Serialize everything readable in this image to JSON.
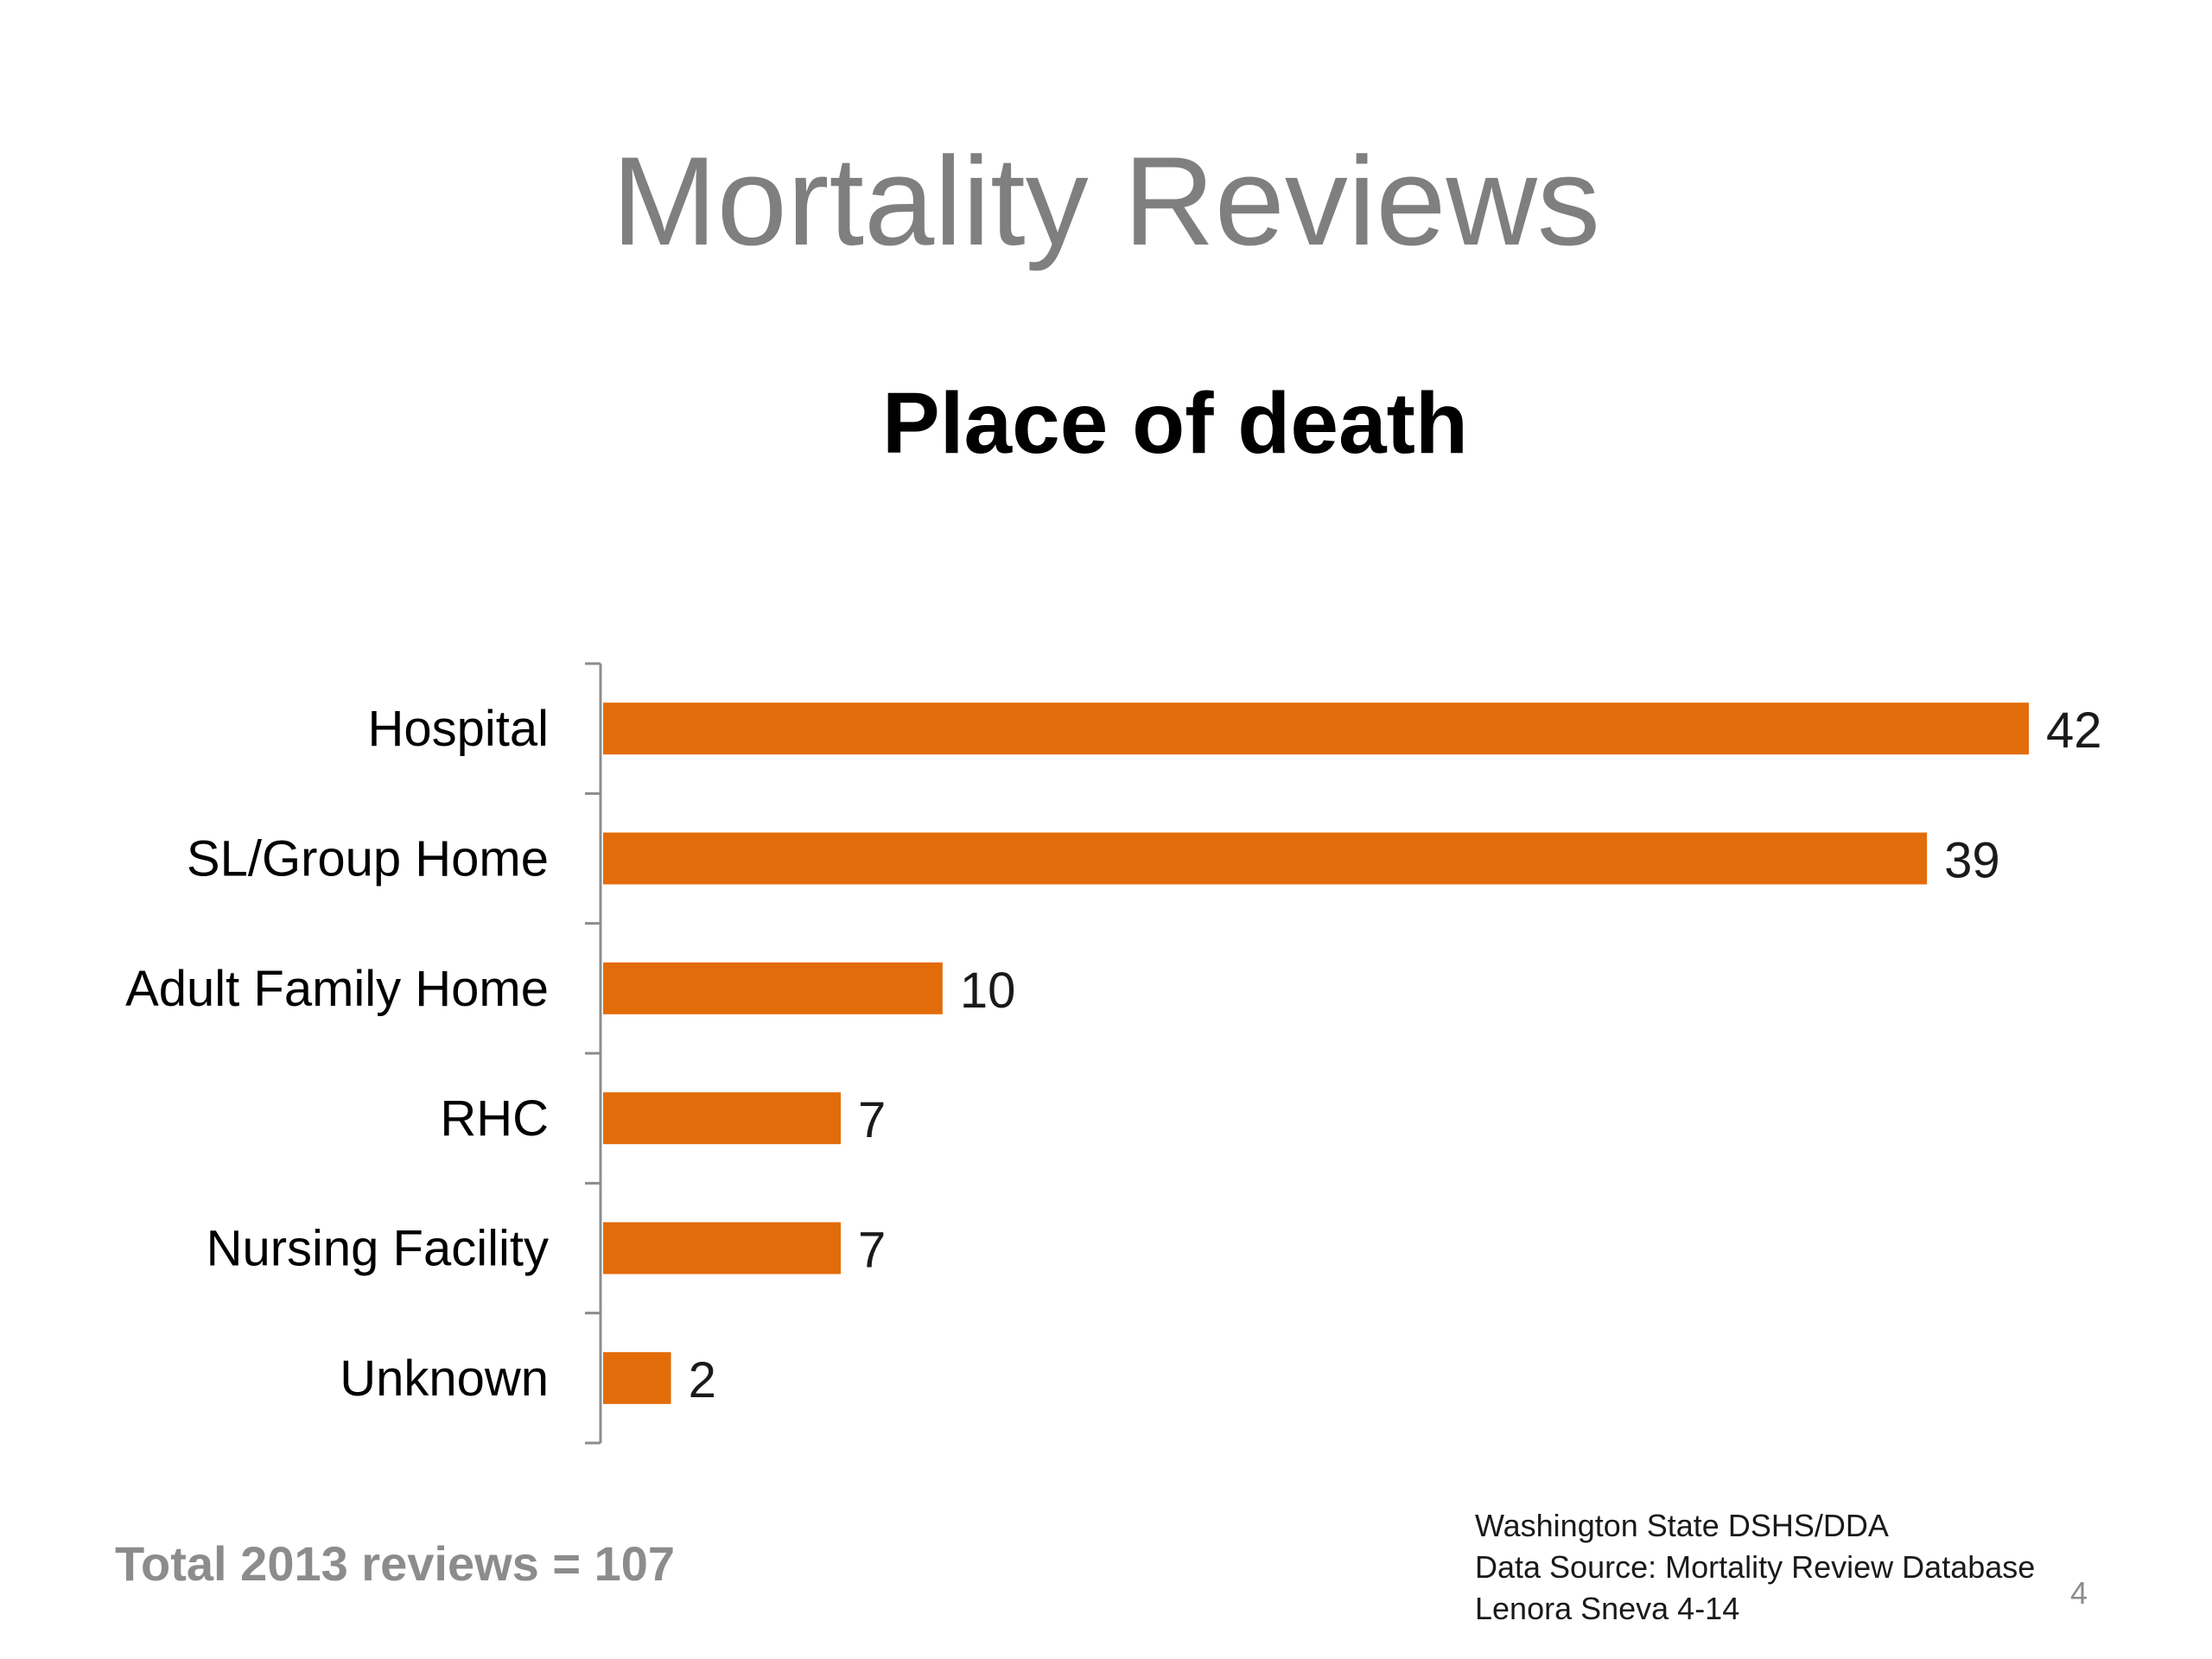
{
  "slide": {
    "title": "Mortality Reviews",
    "page_number": "4"
  },
  "footer": {
    "total": "Total 2013 reviews = 107",
    "source_lines": [
      "Washington State DSHS/DDA",
      "Data Source: Mortality Review Database",
      "Lenora Sneva 4-14"
    ]
  },
  "colors": {
    "bar": "#e36c0a",
    "axis": "#8c8c8c",
    "title": "#7f7f7f"
  },
  "chart_data": {
    "type": "bar",
    "orientation": "horizontal",
    "title": "Place of death",
    "categories": [
      "Hospital",
      "SL/Group Home",
      "Adult Family Home",
      "RHC",
      "Nursing Facility",
      "Unknown"
    ],
    "values": [
      42,
      39,
      10,
      7,
      7,
      2
    ],
    "xlim": [
      0,
      42
    ],
    "data_labels": true,
    "grid": false,
    "legend": "none"
  }
}
